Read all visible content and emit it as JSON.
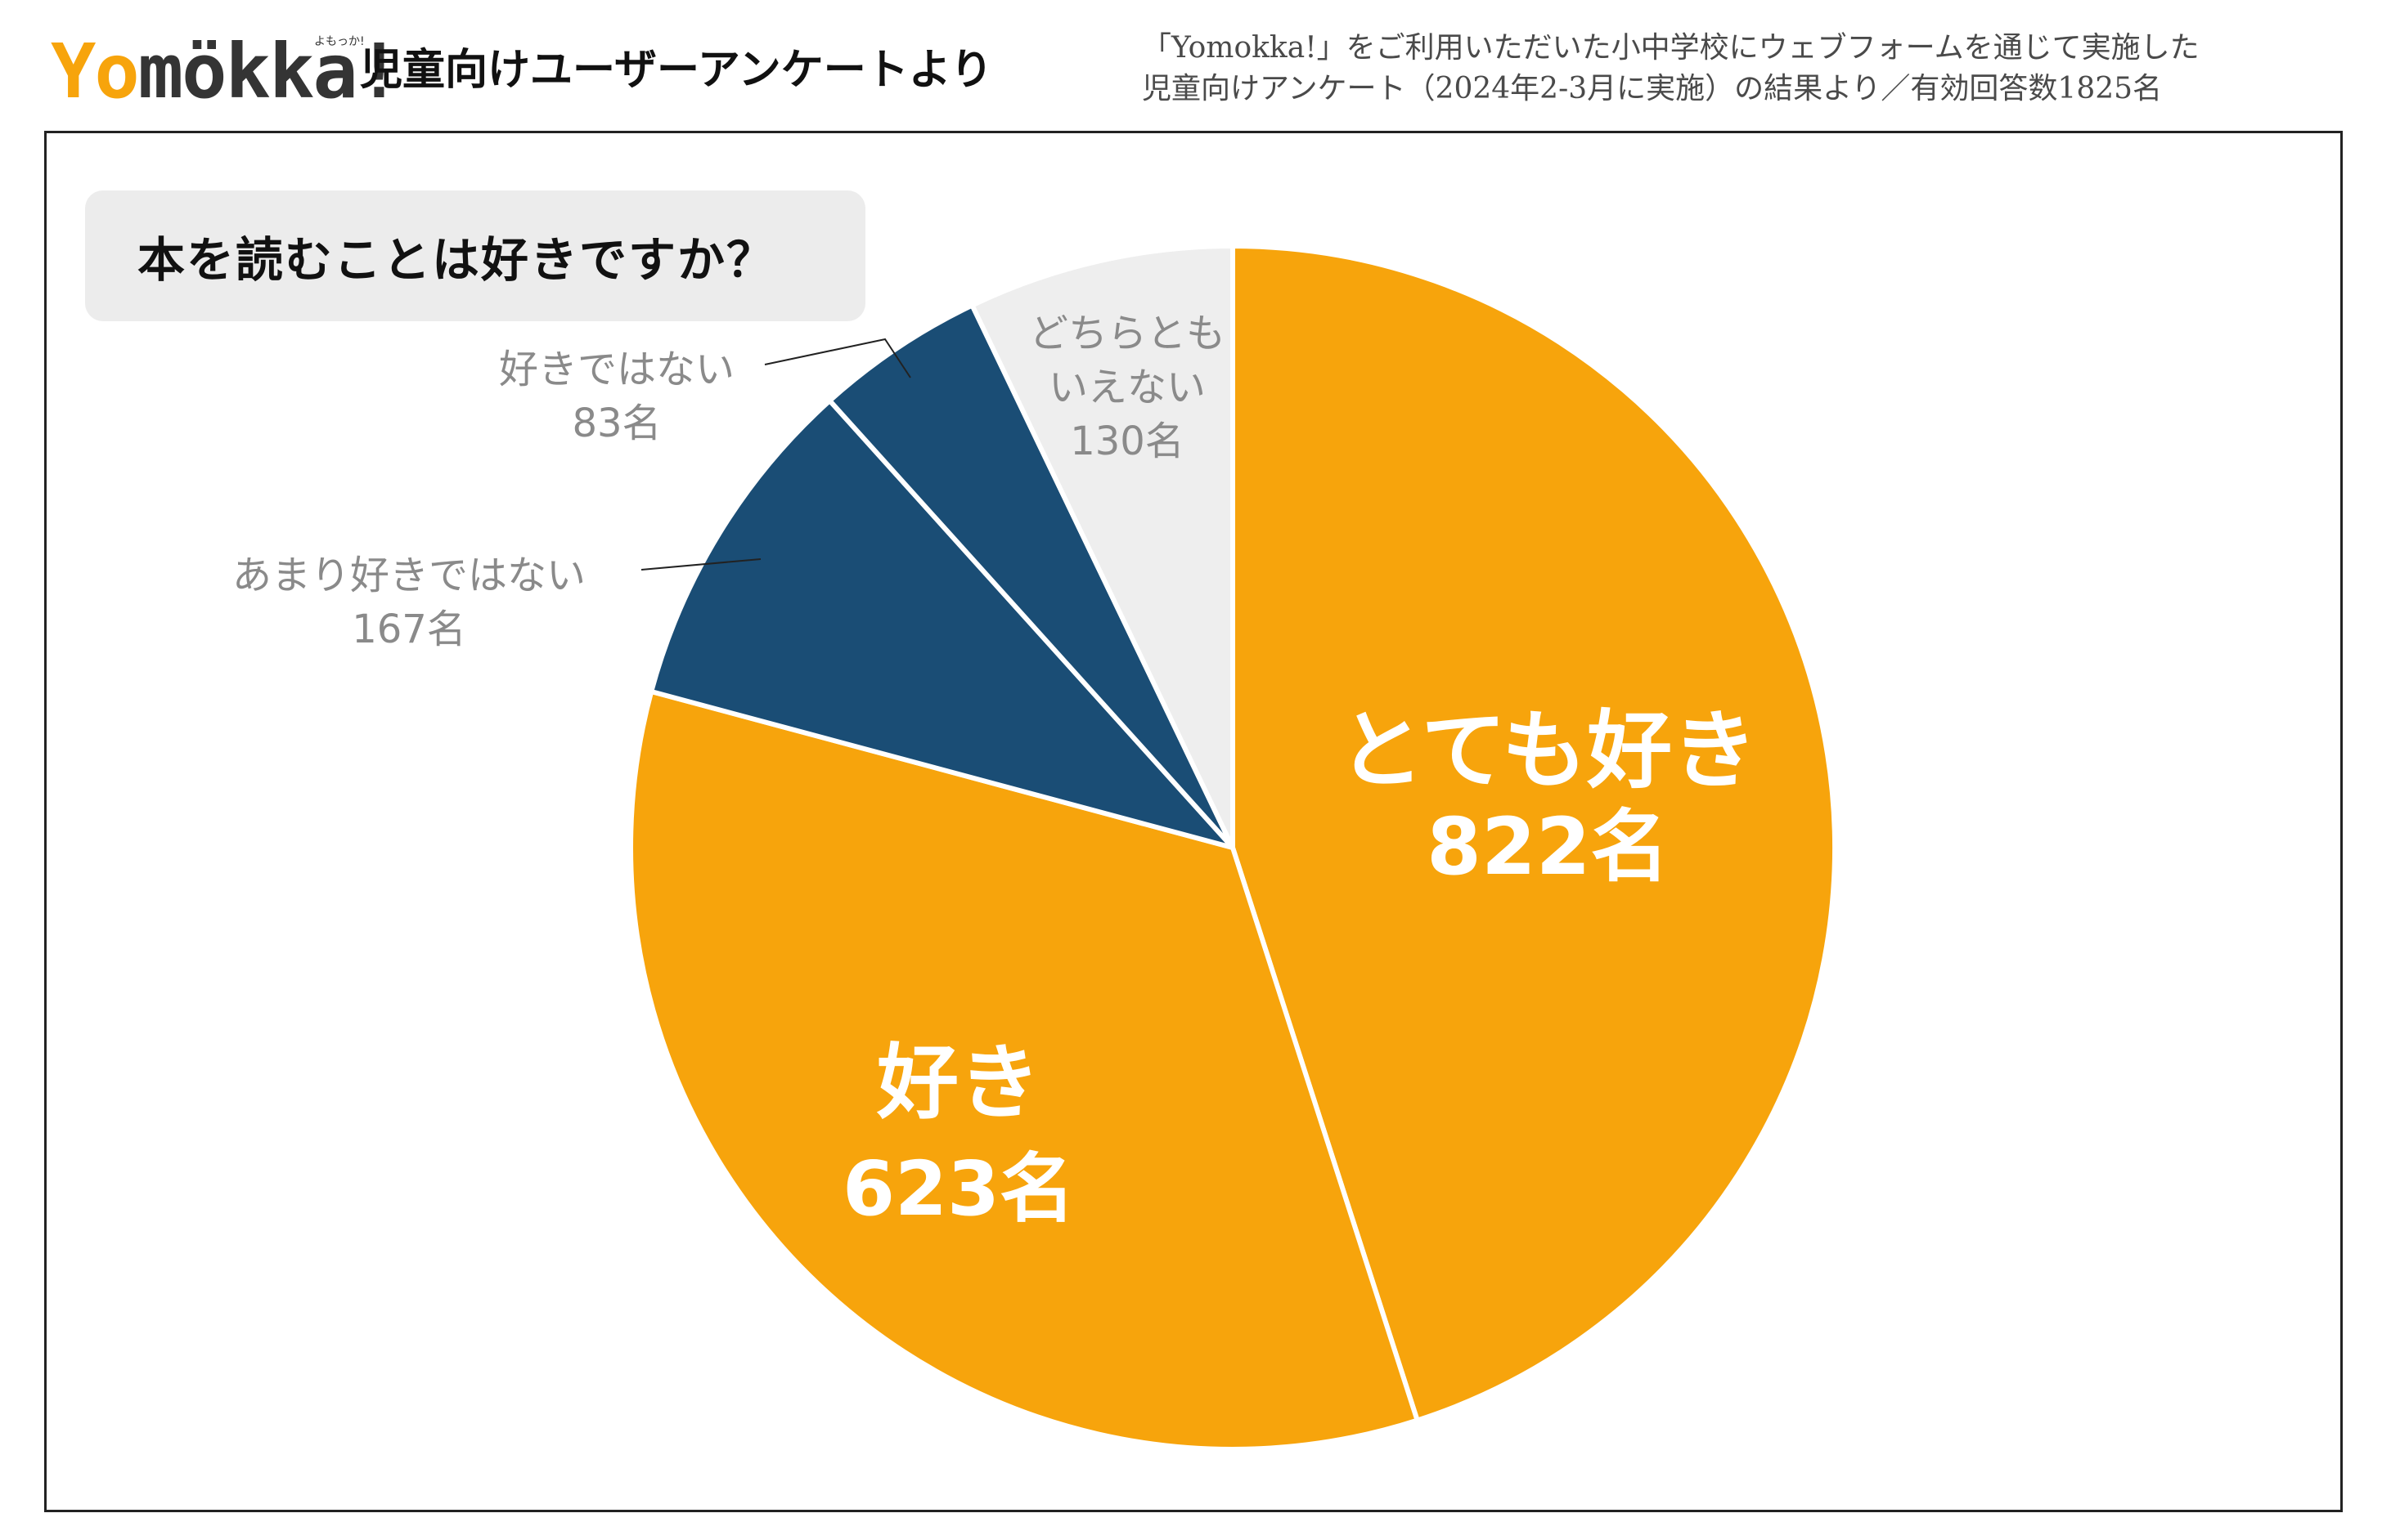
{
  "logo": {
    "part1": "Yo",
    "part2": "mökka!",
    "tagline": "よもっか!"
  },
  "header": {
    "title": "児童向けユーザーアンケートより",
    "note_line1": "「Yomokka!」をご利用いただいた小中学校にウェブフォームを通じて実施した",
    "note_line2": "児童向けアンケート（2024年2-3月に実施）の結果より／有効回答数1825名"
  },
  "question": "本を読むことは好きですか？",
  "colors": {
    "orange": "#f7a40c",
    "navy": "#1a4d75",
    "light_gray": "#eeeeee",
    "label_gray": "#8a8a8a"
  },
  "chart_data": {
    "type": "pie",
    "categories": [
      "とても好き",
      "好き",
      "あまり好きではない",
      "好きではない",
      "どちらともいえない"
    ],
    "values": [
      822,
      623,
      167,
      83,
      130
    ],
    "value_labels": [
      "822名",
      "623名",
      "167名",
      "83名",
      "130名"
    ],
    "label_lines": [
      [
        "とても好き"
      ],
      [
        "好き"
      ],
      [
        "あまり好きではない"
      ],
      [
        "好きではない"
      ],
      [
        "どちらとも",
        "いえない"
      ]
    ],
    "colors": [
      "#f7a40c",
      "#f7a40c",
      "#1a4d75",
      "#1a4d75",
      "#eeeeee"
    ],
    "total": 1825,
    "start": "12 o'clock",
    "direction": "clockwise"
  }
}
